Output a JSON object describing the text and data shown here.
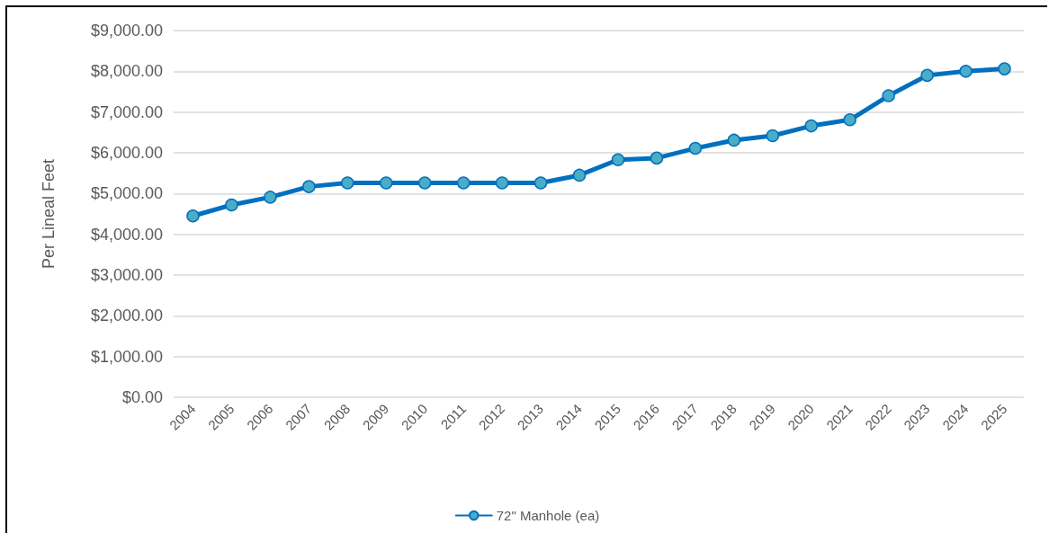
{
  "chart_data": {
    "type": "line",
    "ylabel": "Per Lineal Feet",
    "categories": [
      "2004",
      "2005",
      "2006",
      "2007",
      "2008",
      "2009",
      "2010",
      "2011",
      "2012",
      "2013",
      "2014",
      "2015",
      "2016",
      "2017",
      "2018",
      "2019",
      "2020",
      "2021",
      "2022",
      "2023",
      "2024",
      "2025"
    ],
    "series": [
      {
        "name": "72\" Manhole (ea)",
        "color": "#0070c0",
        "values": [
          4450,
          4720,
          4910,
          5170,
          5260,
          5260,
          5260,
          5260,
          5260,
          5260,
          5450,
          5830,
          5870,
          6110,
          6310,
          6420,
          6660,
          6810,
          7400,
          7900,
          8000,
          8060
        ]
      }
    ],
    "ylim": [
      0,
      9000
    ],
    "yticks": [
      {
        "value": 0,
        "label": "$0.00"
      },
      {
        "value": 1000,
        "label": "$1,000.00"
      },
      {
        "value": 2000,
        "label": "$2,000.00"
      },
      {
        "value": 3000,
        "label": "$3,000.00"
      },
      {
        "value": 4000,
        "label": "$4,000.00"
      },
      {
        "value": 5000,
        "label": "$5,000.00"
      },
      {
        "value": 6000,
        "label": "$6,000.00"
      },
      {
        "value": 7000,
        "label": "$7,000.00"
      },
      {
        "value": 8000,
        "label": "$8,000.00"
      },
      {
        "value": 9000,
        "label": "$9,000.00"
      }
    ],
    "grid": "y",
    "legend": "bottom",
    "marker": "circle",
    "line_style": "solid"
  }
}
